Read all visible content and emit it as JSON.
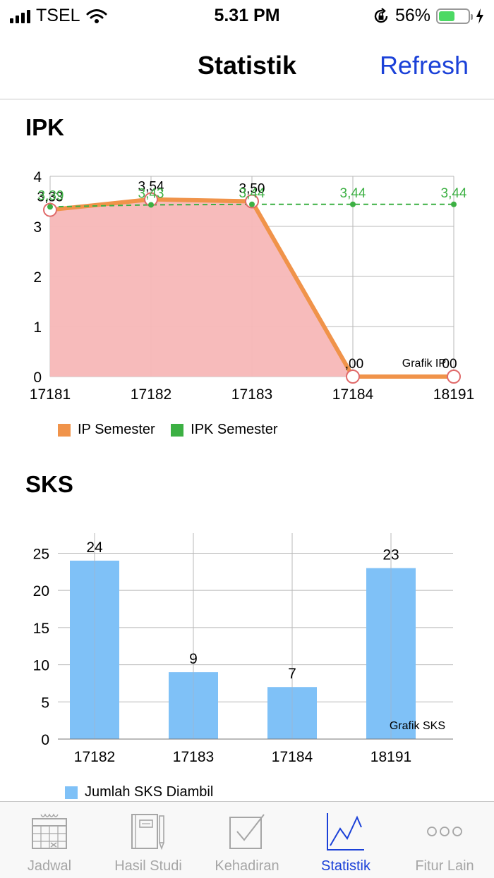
{
  "status_bar": {
    "carrier": "TSEL",
    "time": "5.31 PM",
    "battery": "56%",
    "battery_level": 0.56
  },
  "nav": {
    "title": "Statistik",
    "refresh_label": "Refresh"
  },
  "ipk_section": {
    "title": "IPK"
  },
  "sks_section": {
    "title": "SKS"
  },
  "colors": {
    "accent": "#1b41d8",
    "ip_line": "#f0934a",
    "ip_area": "#f7b7b7",
    "ipk_line": "#3cb043",
    "bar": "#7fc1f7"
  },
  "chart_data": [
    {
      "type": "line",
      "title": "Grafik IP",
      "x": [
        "17181",
        "17182",
        "17183",
        "17184",
        "18191"
      ],
      "ylim": [
        0,
        4
      ],
      "yticks": [
        "0",
        "1",
        "2",
        "3",
        "4"
      ],
      "grid": true,
      "legend_position": "bottom-left",
      "series": [
        {
          "name": "IP Semester",
          "values": [
            3.33,
            3.54,
            3.5,
            0.0,
            0.0
          ],
          "labels": [
            "3,33",
            "3,54",
            "3,50",
            ",00",
            "00"
          ]
        },
        {
          "name": "IPK Semester",
          "values": [
            3.39,
            3.43,
            3.44,
            3.44,
            3.44
          ],
          "labels": [
            "3,39",
            "3,43",
            "3,44",
            "3,44",
            "3,44"
          ]
        }
      ]
    },
    {
      "type": "bar",
      "title": "Grafik SKS",
      "categories": [
        "17182",
        "17183",
        "17184",
        "18191"
      ],
      "ylim": [
        0,
        25
      ],
      "yticks": [
        "0",
        "5",
        "10",
        "15",
        "20",
        "25"
      ],
      "grid": true,
      "legend_position": "bottom-left",
      "series": [
        {
          "name": "Jumlah SKS Diambil",
          "values": [
            24,
            9,
            7,
            23
          ],
          "labels": [
            "24",
            "9",
            "7",
            "23"
          ]
        }
      ]
    }
  ],
  "tabs": [
    {
      "label": "Jadwal",
      "icon": "calendar-icon"
    },
    {
      "label": "Hasil Studi",
      "icon": "notebook-icon"
    },
    {
      "label": "Kehadiran",
      "icon": "checkbox-icon"
    },
    {
      "label": "Statistik",
      "icon": "line-chart-icon",
      "active": true
    },
    {
      "label": "Fitur Lain",
      "icon": "more-icon"
    }
  ]
}
